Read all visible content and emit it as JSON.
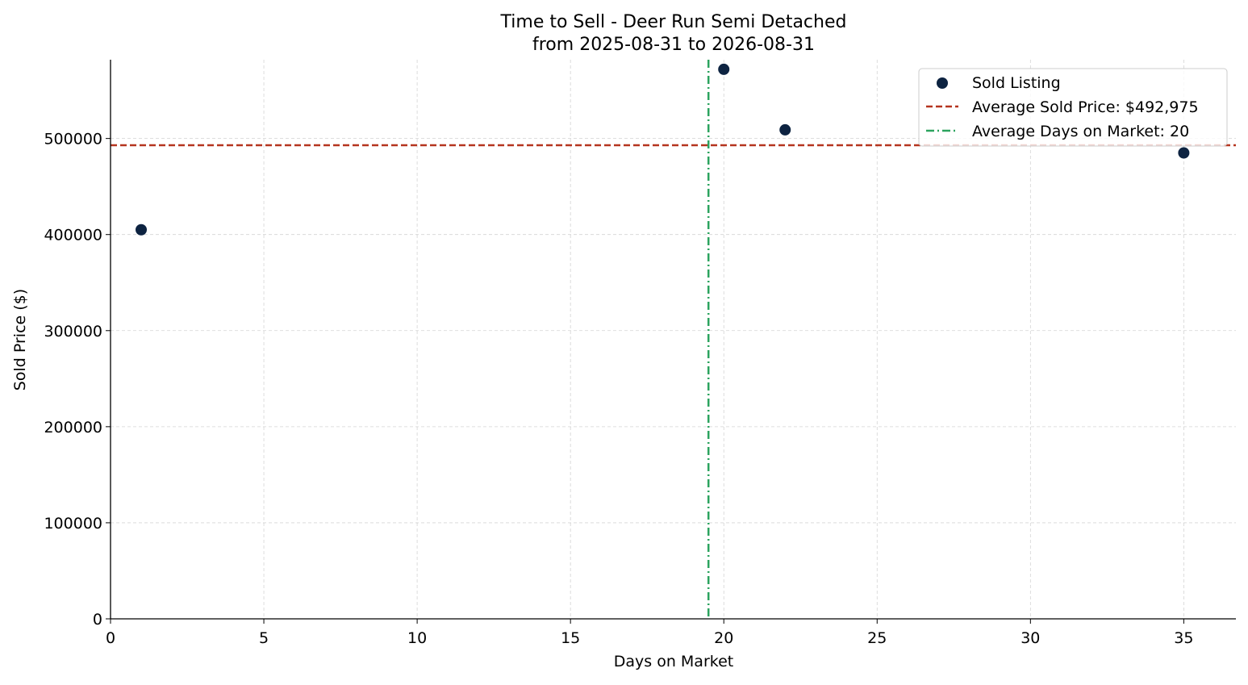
{
  "chart_data": {
    "type": "scatter",
    "title": "Time to Sell - Deer Run Semi Detached",
    "subtitle": "from 2025-08-31 to 2026-08-31",
    "xlabel": "Days on Market",
    "ylabel": "Sold Price ($)",
    "xlim": [
      0,
      36.7
    ],
    "ylim": [
      0,
      582000
    ],
    "xticks": [
      0,
      5,
      10,
      15,
      20,
      25,
      30,
      35
    ],
    "yticks": [
      0,
      100000,
      200000,
      300000,
      400000,
      500000
    ],
    "grid": true,
    "legend_position": "top-right",
    "series": [
      {
        "name": "Sold Listing",
        "color": "#0d2341",
        "points": [
          {
            "x": 1,
            "y": 405000
          },
          {
            "x": 20,
            "y": 572000
          },
          {
            "x": 22,
            "y": 509000
          },
          {
            "x": 35,
            "y": 485000
          }
        ]
      }
    ],
    "reference_lines": [
      {
        "orientation": "horizontal",
        "value": 492975,
        "label": "Average Sold Price: $492,975",
        "color": "#b5341f",
        "style": "dashed"
      },
      {
        "orientation": "vertical",
        "value": 19.5,
        "label": "Average Days on Market: 20",
        "color": "#2ca35f",
        "style": "dashdot"
      }
    ]
  }
}
